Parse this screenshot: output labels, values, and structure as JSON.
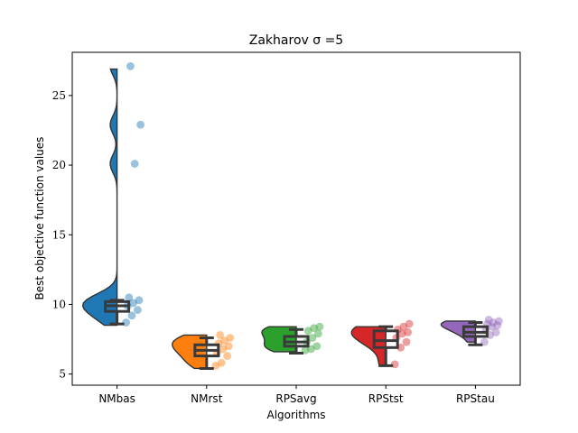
{
  "chart_data": {
    "type": "raincloud",
    "title": "Zakharov σ =5",
    "xlabel": "Algorithms",
    "ylabel": "Best objective function values",
    "ylim": [
      4.2,
      28.1
    ],
    "yticks": [
      5,
      10,
      15,
      20,
      25
    ],
    "grid": false,
    "categories": [
      "NMbas",
      "NMrst",
      "RPSavg",
      "RPStst",
      "RPStau"
    ],
    "series": [
      {
        "category": "NMbas",
        "color": "#1f77b4",
        "kde_min": 8.5,
        "kde_max": 26.9,
        "box": {
          "whisker_low": 8.6,
          "q1": 9.5,
          "median": 9.9,
          "q3": 10.2,
          "whisker_high": 10.3
        },
        "points": [
          8.7,
          9.2,
          9.6,
          9.9,
          10.1,
          10.3,
          10.5,
          20.1,
          22.9,
          27.1
        ]
      },
      {
        "category": "NMrst",
        "color": "#ff7f0e",
        "kde_min": 5.4,
        "kde_max": 7.8,
        "box": {
          "whisker_low": 5.4,
          "q1": 6.3,
          "median": 6.7,
          "q3": 7.1,
          "whisker_high": 7.6
        },
        "points": [
          5.6,
          5.8,
          6.3,
          6.5,
          6.8,
          7.0,
          7.2,
          7.4,
          7.6,
          7.8
        ]
      },
      {
        "category": "RPSavg",
        "color": "#2ca02c",
        "kde_min": 6.6,
        "kde_max": 8.4,
        "box": {
          "whisker_low": 6.5,
          "q1": 7.0,
          "median": 7.3,
          "q3": 7.7,
          "whisker_high": 8.2
        },
        "points": [
          6.7,
          6.8,
          7.0,
          7.3,
          7.6,
          7.9,
          8.1,
          8.3,
          8.4
        ]
      },
      {
        "category": "RPStst",
        "color": "#d62728",
        "kde_min": 5.6,
        "kde_max": 8.4,
        "box": {
          "whisker_low": 5.6,
          "q1": 6.9,
          "median": 7.4,
          "q3": 8.1,
          "whisker_high": 8.4
        },
        "points": [
          5.7,
          6.9,
          7.3,
          7.6,
          7.9,
          8.0,
          8.2,
          8.4,
          8.6
        ]
      },
      {
        "category": "RPStau",
        "color": "#9467bd",
        "kde_min": 7.3,
        "kde_max": 8.8,
        "box": {
          "whisker_low": 7.1,
          "q1": 7.7,
          "median": 8.0,
          "q3": 8.4,
          "whisker_high": 8.7
        },
        "points": [
          7.3,
          7.8,
          8.0,
          8.2,
          8.4,
          8.5,
          8.6,
          8.7,
          8.8,
          8.9
        ]
      }
    ]
  }
}
